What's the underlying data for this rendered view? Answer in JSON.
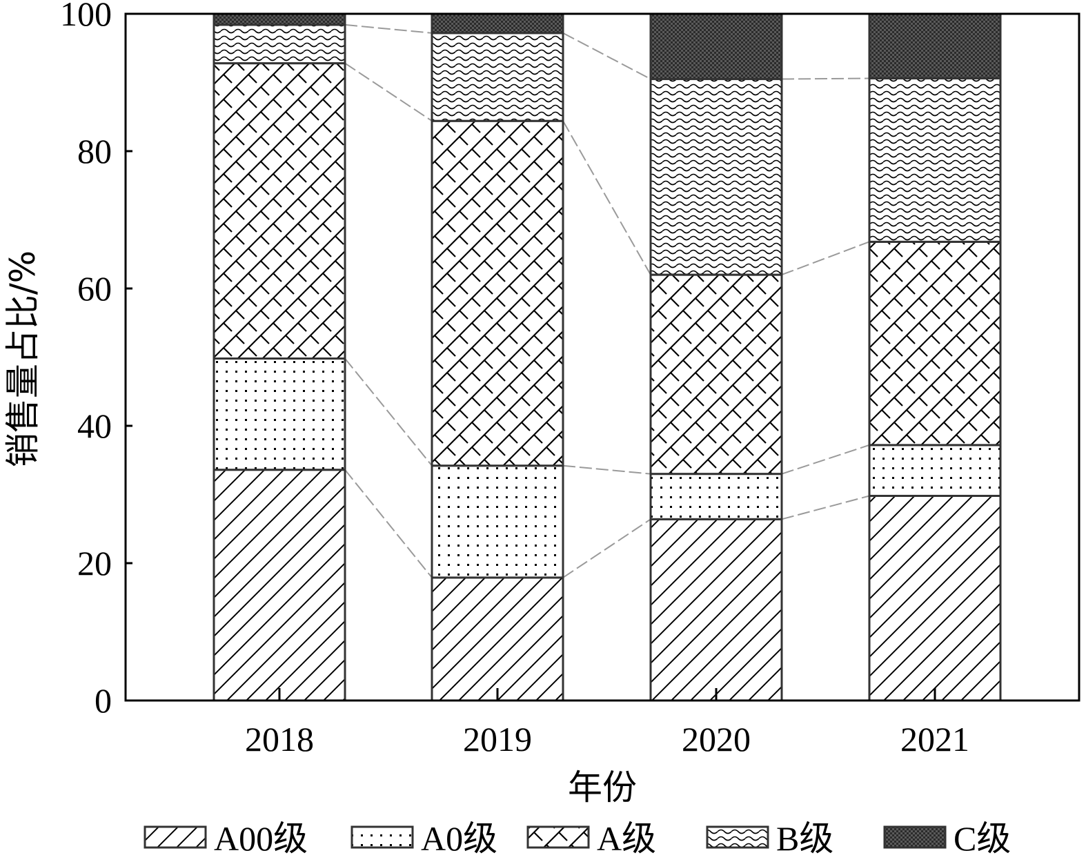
{
  "chart_data": {
    "type": "bar",
    "stacked": true,
    "categories": [
      "2018",
      "2019",
      "2020",
      "2021"
    ],
    "series": [
      {
        "name": "A00级",
        "pattern": "diagonal-hatch",
        "values": [
          33.6,
          17.9,
          26.4,
          29.8
        ]
      },
      {
        "name": "A0级",
        "pattern": "dots",
        "values": [
          16.2,
          16.3,
          6.6,
          7.4
        ]
      },
      {
        "name": "A级",
        "pattern": "brick-crosshatch",
        "values": [
          43.0,
          50.2,
          29.0,
          29.6
        ]
      },
      {
        "name": "B级",
        "pattern": "waves",
        "values": [
          5.6,
          12.8,
          28.5,
          23.8
        ]
      },
      {
        "name": "C级",
        "pattern": "dark-checker",
        "values": [
          1.6,
          2.8,
          9.5,
          9.4
        ]
      }
    ],
    "xlabel": "年份",
    "ylabel": "销售量占比/%",
    "ylim": [
      0,
      100
    ],
    "yticks": [
      "0",
      "20",
      "40",
      "60",
      "80",
      "100"
    ],
    "grid": false,
    "legend_position": "bottom",
    "connector_lines": true
  }
}
